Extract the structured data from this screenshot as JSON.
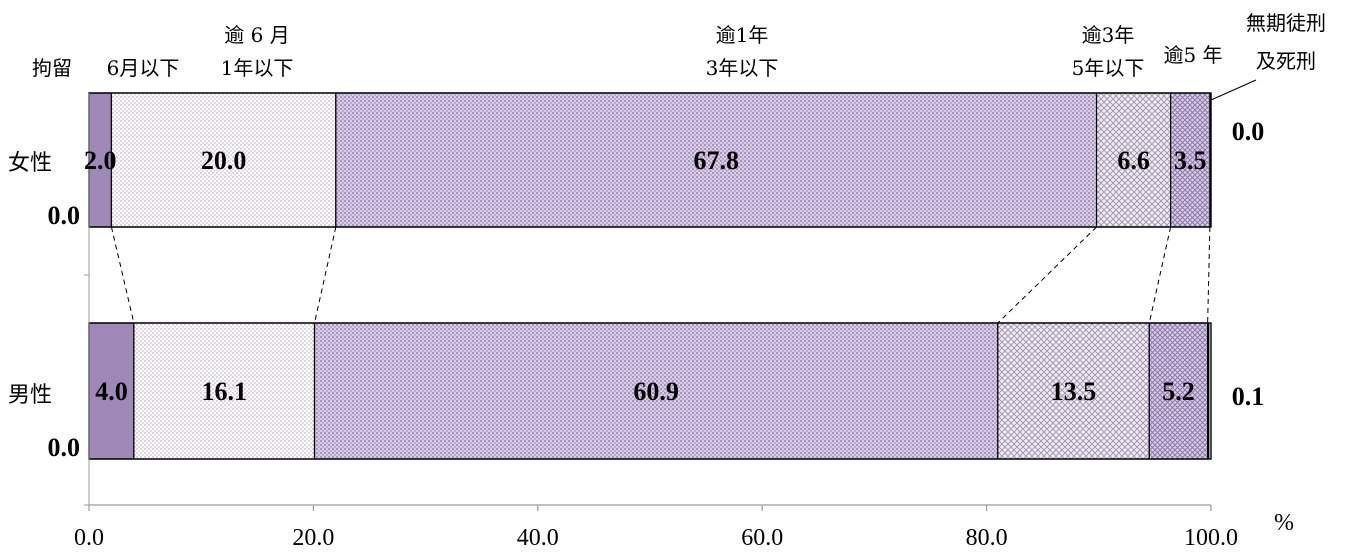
{
  "chart_data": {
    "type": "bar",
    "orientation": "horizontal",
    "stacked": true,
    "series_labels": [
      [
        "拘留"
      ],
      [
        "6月以下"
      ],
      [
        "逾 6 月",
        "1年以下"
      ],
      [
        "逾1年",
        "3年以下"
      ],
      [
        "逾3年",
        "5年以下"
      ],
      [
        "逾5 年"
      ],
      [
        "無期徒刑",
        "及死刑"
      ]
    ],
    "rows": [
      {
        "name": "女性",
        "values": [
          0.0,
          2.0,
          20.0,
          67.8,
          6.6,
          3.5,
          0.0
        ],
        "labels": [
          "0.0",
          "2.0",
          "20.0",
          "67.8",
          "6.6",
          "3.5",
          "0.0"
        ]
      },
      {
        "name": "男性",
        "values": [
          0.0,
          4.0,
          16.1,
          60.9,
          13.5,
          5.2,
          0.1
        ],
        "labels": [
          "0.0",
          "4.0",
          "16.1",
          "60.9",
          "13.5",
          "5.2",
          "0.1"
        ]
      }
    ],
    "xlim": [
      0,
      100
    ],
    "xticks": [
      "0.0",
      "20.0",
      "40.0",
      "60.0",
      "80.0",
      "100.0"
    ],
    "xunit": "%",
    "colors": {
      "purple_solid": "#9e88b6",
      "white_dots": "#ffffff",
      "purple_mesh": "#c2b2d6",
      "check": "#c8c0d2",
      "purple_cross": "#b6a6cc"
    }
  }
}
